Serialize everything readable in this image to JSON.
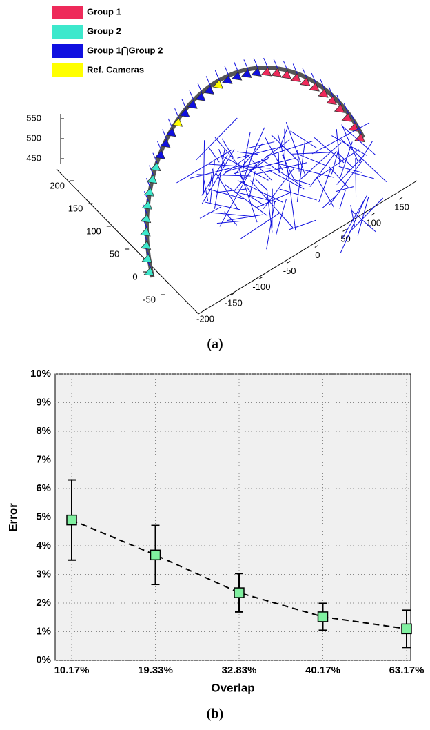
{
  "chart_data": [
    {
      "type": "scene3d",
      "series": [
        {
          "name": "Group 1",
          "color": "#ee2a5a"
        },
        {
          "name": "Group 2",
          "color": "#3de8cc"
        },
        {
          "name": "Group 1⋂Group 2",
          "color": "#1010e0"
        },
        {
          "name": "Ref. Cameras",
          "color": "#ffff00"
        }
      ],
      "xticks": [
        -200,
        -150,
        -100,
        -50,
        0,
        50,
        100,
        150
      ],
      "yticks": [
        -50,
        0,
        50,
        100,
        150,
        200
      ],
      "zticks": [
        450,
        500,
        550
      ],
      "caption": "(a)"
    },
    {
      "type": "line",
      "categories": [
        "10.17%",
        "19.33%",
        "32.83%",
        "40.17%",
        "63.17%"
      ],
      "values": [
        4.9,
        3.68,
        2.36,
        1.52,
        1.1
      ],
      "errors": [
        1.4,
        1.03,
        0.67,
        0.47,
        0.65
      ],
      "color": "#80f0a0",
      "line_color": "#000000",
      "ylim": [
        0,
        10
      ],
      "yticks": [
        {
          "value": 0,
          "label": "0%"
        },
        {
          "value": 1,
          "label": "1%"
        },
        {
          "value": 2,
          "label": "2%"
        },
        {
          "value": 3,
          "label": "3%"
        },
        {
          "value": 4,
          "label": "4%"
        },
        {
          "value": 5,
          "label": "5%"
        },
        {
          "value": 6,
          "label": "6%"
        },
        {
          "value": 7,
          "label": "7%"
        },
        {
          "value": 8,
          "label": "8%"
        },
        {
          "value": 9,
          "label": "9%"
        },
        {
          "value": 10,
          "label": "10%"
        }
      ],
      "grid": true,
      "xlabel": "Overlap",
      "ylabel": "Error",
      "caption": "(b)"
    }
  ]
}
